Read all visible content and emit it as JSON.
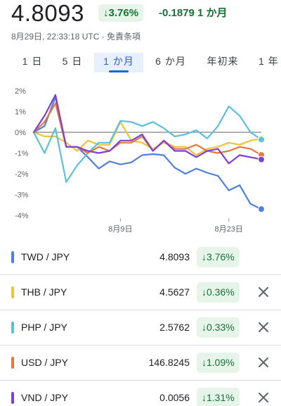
{
  "header": {
    "price": "4.8093",
    "change_pct": "↓3.76%",
    "change_abs": "-0.1879 1 か月",
    "timestamp": "8月29日, 22:33:18 UTC · 免責条項"
  },
  "tabs": [
    {
      "label": "1 日"
    },
    {
      "label": "5 日"
    },
    {
      "label": "1 か月",
      "active": true
    },
    {
      "label": "6 か月"
    },
    {
      "label": "年初来"
    },
    {
      "label": "1 年"
    }
  ],
  "chart_data": {
    "type": "line",
    "y_ticks": [
      "2%",
      "1%",
      "0%",
      "-1%",
      "-2%",
      "-3%",
      "-4%"
    ],
    "ylim": [
      -4,
      2
    ],
    "x_ticks": [
      {
        "label": "8月9日",
        "index": 8
      },
      {
        "label": "8月23日",
        "index": 18
      }
    ],
    "x_count": 22,
    "series": [
      {
        "name": "TWD / JPY",
        "color": "#4f7fe0",
        "values": [
          0,
          0.3,
          1.7,
          -0.7,
          -0.7,
          -1.2,
          -1.75,
          -1.4,
          -1.55,
          -1.45,
          -1.1,
          -1.05,
          -1.1,
          -1.7,
          -2.0,
          -1.75,
          -1.95,
          -2.1,
          -2.8,
          -2.55,
          -3.45,
          -3.7
        ]
      },
      {
        "name": "THB / JPY",
        "color": "#f1c232",
        "values": [
          0,
          -0.2,
          -0.2,
          -0.5,
          -0.9,
          -0.4,
          -0.6,
          -0.6,
          0.5,
          -0.4,
          -0.5,
          -0.8,
          -0.5,
          -0.7,
          -0.7,
          -1.1,
          -0.8,
          -0.7,
          -0.5,
          -0.6,
          -0.4,
          -0.3
        ]
      },
      {
        "name": "PHP / JPY",
        "color": "#5bc0de",
        "values": [
          0,
          -1.0,
          0.2,
          -2.4,
          -1.6,
          -1.0,
          -0.5,
          -0.5,
          0.55,
          0.5,
          0.3,
          0.5,
          0.2,
          -0.2,
          -0.1,
          0.1,
          -0.3,
          0.3,
          1.25,
          0.8,
          0.0,
          -0.35
        ]
      },
      {
        "name": "USD / JPY",
        "color": "#e8773a",
        "values": [
          0,
          0.5,
          1.4,
          -0.7,
          -0.7,
          -1.0,
          -0.7,
          -0.9,
          -0.5,
          -0.5,
          -0.2,
          -0.9,
          -0.4,
          -0.8,
          -0.8,
          -0.6,
          -0.9,
          -1.0,
          -0.9,
          -0.7,
          -0.8,
          -1.09
        ]
      },
      {
        "name": "VND / JPY",
        "color": "#7e3fd6",
        "values": [
          0,
          0.8,
          1.8,
          -0.7,
          -0.7,
          -0.9,
          -1.0,
          -0.9,
          -0.4,
          -0.4,
          -0.1,
          -0.9,
          -0.4,
          -0.9,
          -0.9,
          -1.2,
          -0.9,
          -0.8,
          -1.5,
          -1.1,
          -1.2,
          -1.31
        ]
      }
    ]
  },
  "rows": [
    {
      "symbol": "TWD / JPY",
      "value": "4.8093",
      "change": "↓3.76%",
      "color": "#4f7fe0",
      "closable": false
    },
    {
      "symbol": "THB / JPY",
      "value": "4.5627",
      "change": "↓0.36%",
      "color": "#f1c232",
      "closable": true
    },
    {
      "symbol": "PHP / JPY",
      "value": "2.5762",
      "change": "↓0.33%",
      "color": "#5bc0de",
      "closable": true
    },
    {
      "symbol": "USD / JPY",
      "value": "146.8245",
      "change": "↓1.09%",
      "color": "#e8773a",
      "closable": true
    },
    {
      "symbol": "VND / JPY",
      "value": "0.0056",
      "change": "↓1.31%",
      "color": "#7e3fd6",
      "closable": true
    }
  ]
}
